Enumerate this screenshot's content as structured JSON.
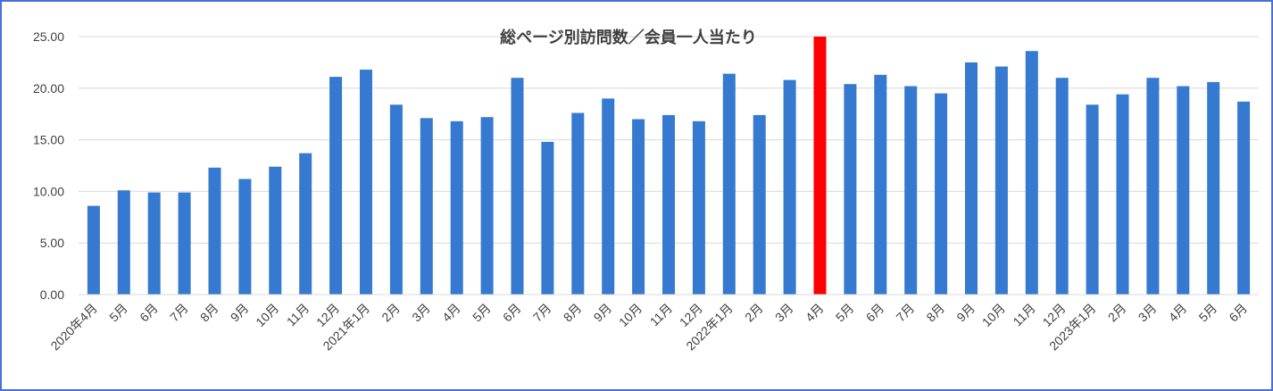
{
  "chart_data": {
    "type": "bar",
    "title": "総ページ別訪問数／会員一人当たり",
    "xlabel": "",
    "ylabel": "",
    "ylim": [
      0,
      25
    ],
    "yticks": [
      "0.00",
      "5.00",
      "10.00",
      "15.00",
      "20.00",
      "25.00"
    ],
    "grid": true,
    "legend": "none",
    "bar_color": "#3579d0",
    "highlight_color": "#ff0000",
    "highlight_index": 24,
    "categories": [
      "2020年4月",
      "5月",
      "6月",
      "7月",
      "8月",
      "9月",
      "10月",
      "11月",
      "12月",
      "2021年1月",
      "2月",
      "3月",
      "4月",
      "5月",
      "6月",
      "7月",
      "8月",
      "9月",
      "10月",
      "11月",
      "12月",
      "2022年1月",
      "2月",
      "3月",
      "4月",
      "5月",
      "6月",
      "7月",
      "8月",
      "9月",
      "10月",
      "11月",
      "12月",
      "2023年1月",
      "2月",
      "3月",
      "4月",
      "5月",
      "6月"
    ],
    "values": [
      8.6,
      10.1,
      9.9,
      9.9,
      12.3,
      11.2,
      12.4,
      13.7,
      21.1,
      21.8,
      18.4,
      17.1,
      16.8,
      17.2,
      21.0,
      14.8,
      17.6,
      19.0,
      17.0,
      17.4,
      16.8,
      21.4,
      17.4,
      20.8,
      25.0,
      20.4,
      21.3,
      20.2,
      19.5,
      22.5,
      22.1,
      23.6,
      21.0,
      18.4,
      19.4,
      21.0,
      20.2,
      20.6,
      18.7
    ]
  }
}
